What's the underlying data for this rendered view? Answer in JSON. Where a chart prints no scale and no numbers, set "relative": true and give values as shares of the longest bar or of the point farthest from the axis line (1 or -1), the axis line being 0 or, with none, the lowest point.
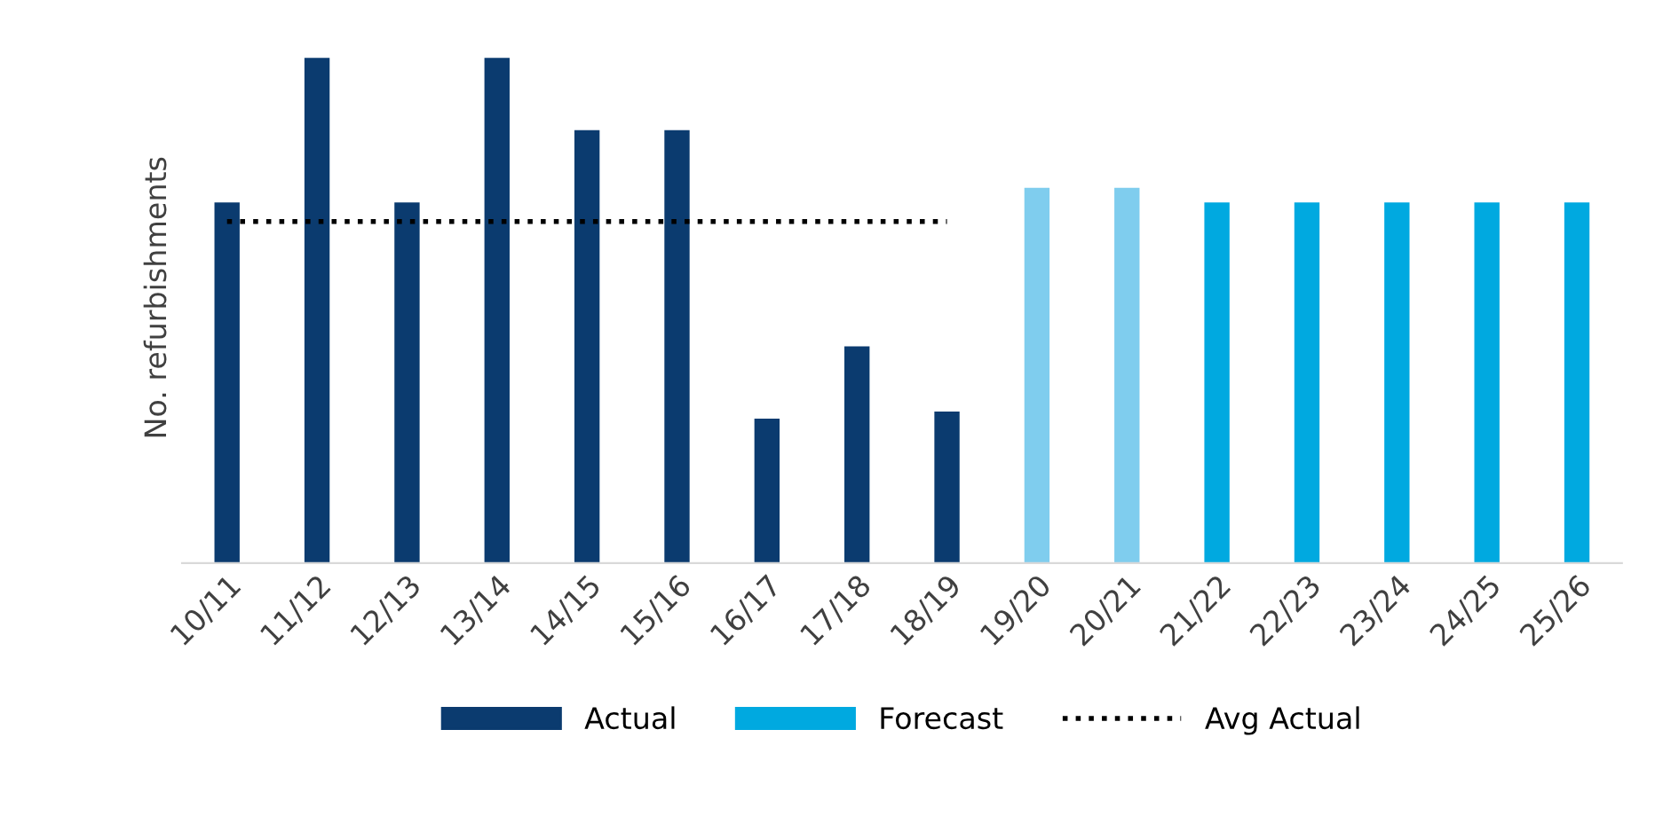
{
  "chart_data": {
    "type": "bar",
    "relative": true,
    "ylabel": "No. refurbishments",
    "categories": [
      "10/11",
      "11/12",
      "12/13",
      "13/14",
      "14/15",
      "15/16",
      "16/17",
      "17/18",
      "18/19",
      "19/20",
      "20/21",
      "21/22",
      "22/23",
      "23/24",
      "24/25",
      "25/26"
    ],
    "series": [
      {
        "name": "Actual",
        "color": "#0b3b6f",
        "values": [
          0.714,
          1,
          0.714,
          1,
          0.857,
          0.857,
          0.286,
          0.429,
          0.3,
          null,
          null,
          null,
          null,
          null,
          null,
          null
        ]
      },
      {
        "name": "Forecast",
        "color": "#00a9e0",
        "colors": [
          null,
          null,
          null,
          null,
          null,
          null,
          null,
          null,
          null,
          "#7fcdee",
          "#7fcdee",
          "#00a9e0",
          "#00a9e0",
          "#00a9e0",
          "#00a9e0",
          "#00a9e0"
        ],
        "values": [
          null,
          null,
          null,
          null,
          null,
          null,
          null,
          null,
          null,
          0.743,
          0.743,
          0.714,
          0.714,
          0.714,
          0.714,
          0.714
        ]
      },
      {
        "name": "Avg Actual",
        "type": "line",
        "line_style": "dotted",
        "color": "#000000",
        "values": [
          0.676,
          0.676,
          0.676,
          0.676,
          0.676,
          0.676,
          0.676,
          0.676,
          0.676,
          null,
          null,
          null,
          null,
          null,
          null,
          null
        ]
      }
    ],
    "legend": "bottom"
  }
}
